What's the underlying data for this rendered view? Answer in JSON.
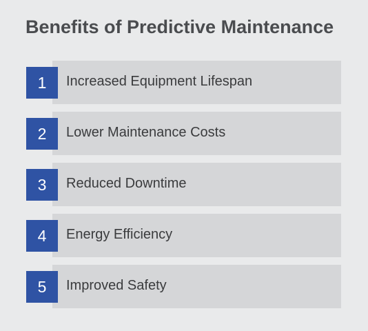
{
  "title": "Benefits of Predictive Maintenance",
  "colors": {
    "background": "#e9eaeb",
    "bar": "#d5d6d8",
    "badge": "#2f53a4",
    "title_text": "#4a4c4f",
    "item_text": "#3a3b3d"
  },
  "items": [
    {
      "number": "1",
      "label": "Increased Equipment Lifespan"
    },
    {
      "number": "2",
      "label": "Lower Maintenance Costs"
    },
    {
      "number": "3",
      "label": "Reduced Downtime"
    },
    {
      "number": "4",
      "label": "Energy Efficiency"
    },
    {
      "number": "5",
      "label": "Improved Safety"
    }
  ]
}
